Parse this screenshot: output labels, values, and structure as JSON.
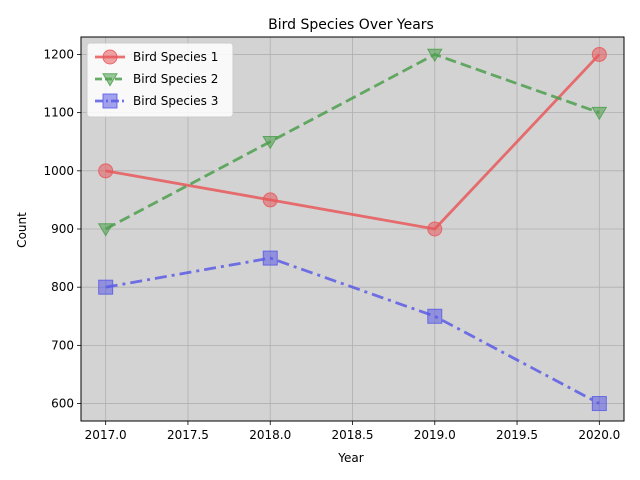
{
  "chart_data": {
    "type": "line",
    "title": "Bird Species Over Years",
    "xlabel": "Year",
    "ylabel": "Count",
    "x": [
      2017,
      2018,
      2019,
      2020
    ],
    "xlim": [
      2016.85,
      2020.15
    ],
    "ylim": [
      570,
      1230
    ],
    "xticks": [
      "2017.0",
      "2017.5",
      "2018.0",
      "2018.5",
      "2019.0",
      "2019.5",
      "2020.0"
    ],
    "xtick_values": [
      2017.0,
      2017.5,
      2018.0,
      2018.5,
      2019.0,
      2019.5,
      2020.0
    ],
    "yticks": [
      "600",
      "700",
      "800",
      "900",
      "1000",
      "1100",
      "1200"
    ],
    "ytick_values": [
      600,
      700,
      800,
      900,
      1000,
      1100,
      1200
    ],
    "grid": true,
    "legend_position": "top-left",
    "plot_background": "#d3d3d3",
    "series": [
      {
        "name": "Bird Species 1",
        "values": [
          1000,
          950,
          900,
          1200
        ],
        "color": "#e8585b",
        "line_style": "solid",
        "marker": "circle"
      },
      {
        "name": "Bird Species 2",
        "values": [
          900,
          1050,
          1200,
          1100
        ],
        "color": "#4c9f4c",
        "line_style": "dashed",
        "marker": "triangle-down"
      },
      {
        "name": "Bird Species 3",
        "values": [
          800,
          850,
          750,
          600
        ],
        "color": "#5a5ae6",
        "line_style": "dashdot",
        "marker": "square"
      }
    ]
  }
}
